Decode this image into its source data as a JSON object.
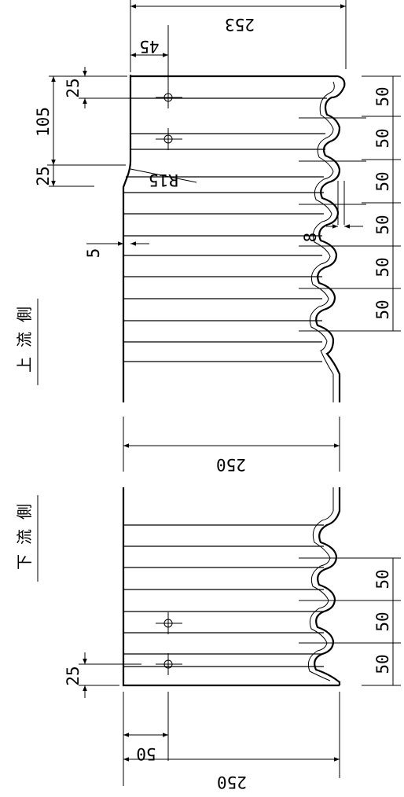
{
  "labels": {
    "upstream": "上 流 側",
    "downstream": "下 流 側"
  },
  "dimensions": {
    "upper_overall_width": "253",
    "upper_offset": "45",
    "pitch": "50",
    "side_25": "25",
    "side_105": "105",
    "radius": "R15",
    "gap_5": "5",
    "groove_8": "8",
    "mid_width": "250",
    "lower_offset": "50",
    "lower_overall_width": "250"
  }
}
